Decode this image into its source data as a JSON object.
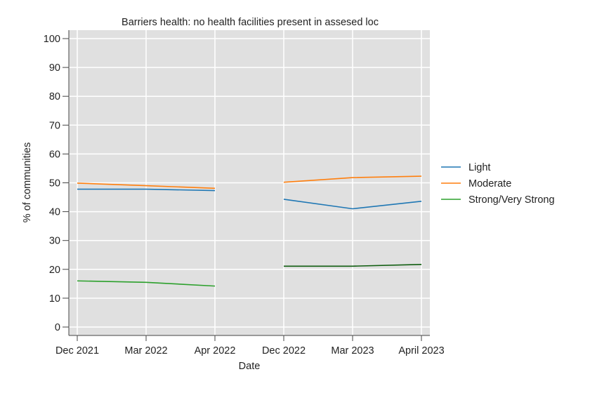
{
  "chart_data": {
    "type": "line",
    "title": "Barriers health: no health facilities present in assesed loc",
    "xlabel": "Date",
    "ylabel": "% of communities",
    "categories": [
      "Dec 2021",
      "Mar 2022",
      "Apr 2022",
      "Dec 2022",
      "Mar 2023",
      "April 2023"
    ],
    "ylim": [
      0,
      100
    ],
    "yticks": [
      0,
      10,
      20,
      30,
      40,
      50,
      60,
      70,
      80,
      90,
      100
    ],
    "grid": true,
    "legend_position": "right",
    "series": [
      {
        "name": "Light",
        "color": "#1f77b4",
        "values": [
          47.8,
          47.8,
          47.3,
          44.3,
          41.0,
          43.6
        ]
      },
      {
        "name": "Moderate",
        "color": "#ff7f0e",
        "values": [
          49.9,
          49.0,
          48.1,
          50.2,
          51.8,
          52.3
        ]
      },
      {
        "name": "Strong/Very Strong",
        "color": "#2ca02c",
        "segment_colors": [
          "#2ca02c",
          "#0f5d0f"
        ],
        "values": [
          16.0,
          15.5,
          14.2,
          21.1,
          21.1,
          21.7
        ]
      }
    ],
    "gap_after_index": 2
  }
}
